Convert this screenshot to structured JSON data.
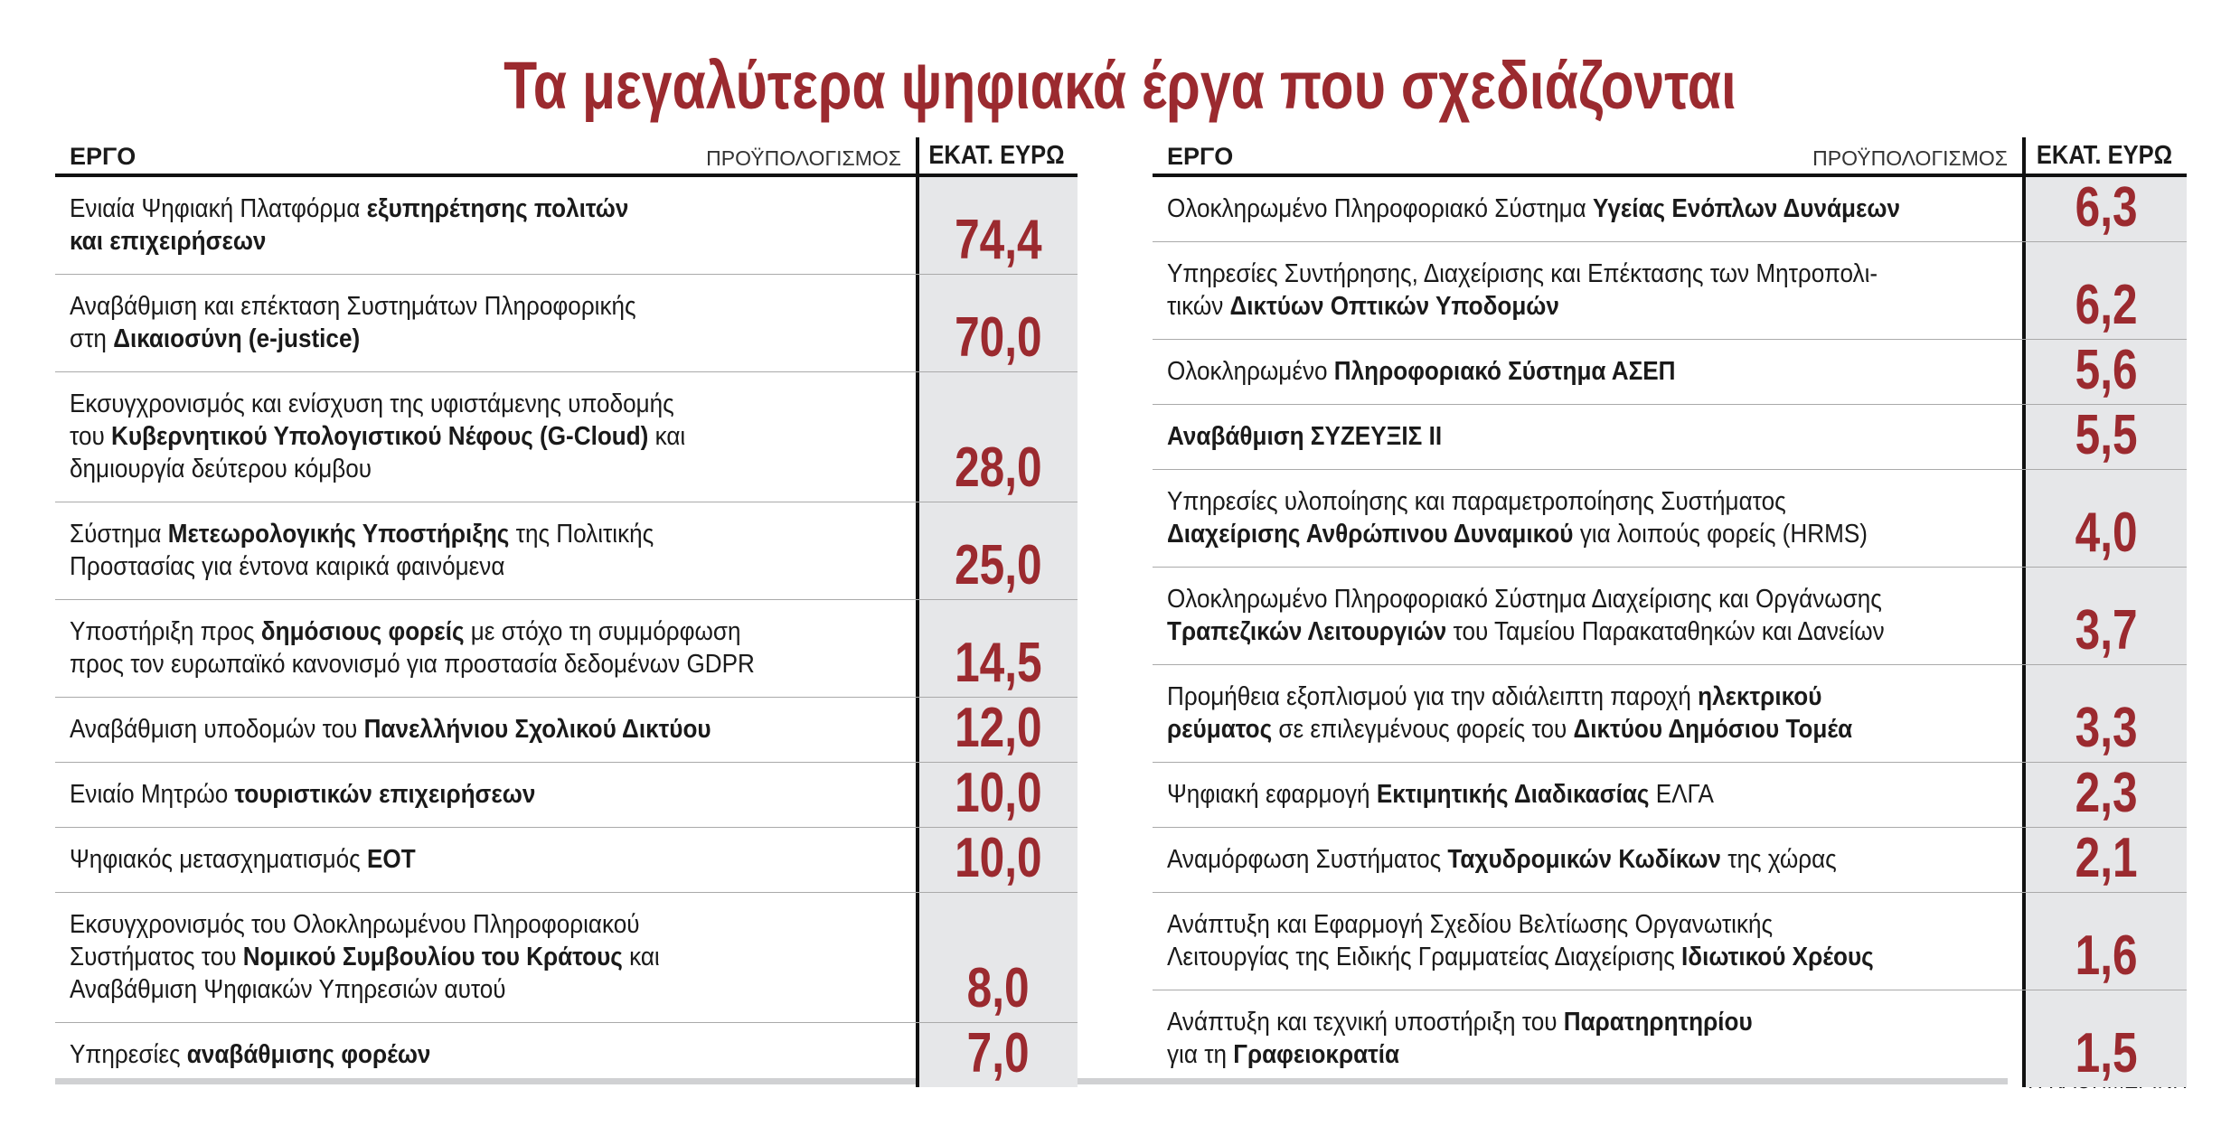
{
  "title": "Τα μεγαλύτερα ψηφιακά έργα που σχεδιάζονται",
  "tables": [
    {
      "header": {
        "project": "ΕΡΓΟ",
        "budget": "ΠΡΟΫΠΟΛΟΓΙΣΜΟΣ",
        "unit": "ΕΚΑΤ. ΕΥΡΩ"
      },
      "rows": [
        {
          "lines": [
            [
              {
                "t": "Ενιαία Ψηφιακή Πλατφόρμα "
              },
              {
                "t": "εξυπηρέτησης πολιτών",
                "b": true
              }
            ],
            [
              {
                "t": "και επιχειρήσεων",
                "b": true
              }
            ]
          ],
          "value": "74,4"
        },
        {
          "lines": [
            [
              {
                "t": "Αναβάθμιση και επέκταση Συστημάτων Πληροφορικής"
              }
            ],
            [
              {
                "t": "στη "
              },
              {
                "t": "Δικαιοσύνη (e-justice)",
                "b": true
              }
            ]
          ],
          "value": "70,0"
        },
        {
          "lines": [
            [
              {
                "t": "Εκσυγχρονισμός και ενίσχυση της υφιστάμενης υποδομής"
              }
            ],
            [
              {
                "t": "του "
              },
              {
                "t": "Κυβερνητικού Υπολογιστικού Νέφους (G-Cloud)",
                "b": true
              },
              {
                "t": " και"
              }
            ],
            [
              {
                "t": "δημιουργία δεύτερου κόμβου"
              }
            ]
          ],
          "value": "28,0"
        },
        {
          "lines": [
            [
              {
                "t": "Σύστημα "
              },
              {
                "t": "Μετεωρολογικής Υποστήριξης",
                "b": true
              },
              {
                "t": " της Πολιτικής"
              }
            ],
            [
              {
                "t": "Προστασίας για έντονα καιρικά φαινόμενα"
              }
            ]
          ],
          "value": "25,0"
        },
        {
          "lines": [
            [
              {
                "t": "Υποστήριξη προς "
              },
              {
                "t": "δημόσιους φορείς",
                "b": true
              },
              {
                "t": " με στόχο τη συμμόρφωση"
              }
            ],
            [
              {
                "t": "προς τον ευρωπαϊκό κανονισμό για προστασία δεδομένων GDPR"
              }
            ]
          ],
          "value": "14,5"
        },
        {
          "lines": [
            [
              {
                "t": "Αναβάθμιση υποδομών του "
              },
              {
                "t": "Πανελλήνιου Σχολικού Δικτύου",
                "b": true
              }
            ]
          ],
          "value": "12,0"
        },
        {
          "lines": [
            [
              {
                "t": "Ενιαίο Μητρώο "
              },
              {
                "t": "τουριστικών επιχειρήσεων",
                "b": true
              }
            ]
          ],
          "value": "10,0"
        },
        {
          "lines": [
            [
              {
                "t": "Ψηφιακός μετασχηματισμός "
              },
              {
                "t": "ΕΟΤ",
                "b": true
              }
            ]
          ],
          "value": "10,0"
        },
        {
          "lines": [
            [
              {
                "t": "Εκσυγχρονισμός του Ολοκληρωμένου Πληροφοριακού"
              }
            ],
            [
              {
                "t": "Συστήματος του "
              },
              {
                "t": "Νομικού Συμβουλίου του Κράτους",
                "b": true
              },
              {
                "t": " και"
              }
            ],
            [
              {
                "t": "Αναβάθμιση Ψηφιακών Υπηρεσιών αυτού"
              }
            ]
          ],
          "value": "8,0"
        },
        {
          "lines": [
            [
              {
                "t": "Υπηρεσίες "
              },
              {
                "t": "αναβάθμισης φορέων",
                "b": true
              }
            ]
          ],
          "value": "7,0"
        }
      ]
    },
    {
      "header": {
        "project": "ΕΡΓΟ",
        "budget": "ΠΡΟΫΠΟΛΟΓΙΣΜΟΣ",
        "unit": "ΕΚΑΤ. ΕΥΡΩ"
      },
      "rows": [
        {
          "lines": [
            [
              {
                "t": "Ολοκληρωμένο Πληροφοριακό Σύστημα "
              },
              {
                "t": "Υγείας Ενόπλων Δυνάμεων",
                "b": true
              }
            ]
          ],
          "value": "6,3"
        },
        {
          "lines": [
            [
              {
                "t": "Υπηρεσίες Συντήρησης, Διαχείρισης και Επέκτασης των Μητροπολι-"
              }
            ],
            [
              {
                "t": "τικών "
              },
              {
                "t": "Δικτύων Οπτικών Υποδομών",
                "b": true
              }
            ]
          ],
          "value": "6,2"
        },
        {
          "lines": [
            [
              {
                "t": "Ολοκληρωμένο "
              },
              {
                "t": "Πληροφοριακό Σύστημα ΑΣΕΠ",
                "b": true
              }
            ]
          ],
          "value": "5,6"
        },
        {
          "lines": [
            [
              {
                "t": "Αναβάθμιση ΣΥΖΕΥΞΙΣ ΙΙ",
                "b": true
              }
            ]
          ],
          "value": "5,5"
        },
        {
          "lines": [
            [
              {
                "t": "Υπηρεσίες υλοποίησης και παραμετροποίησης Συστήματος"
              }
            ],
            [
              {
                "t": "Διαχείρισης Ανθρώπινου Δυναμικού",
                "b": true
              },
              {
                "t": " για λοιπούς φορείς (HRMS)"
              }
            ]
          ],
          "value": "4,0"
        },
        {
          "lines": [
            [
              {
                "t": "Ολοκληρωμένο Πληροφοριακό Σύστημα Διαχείρισης και Οργάνωσης"
              }
            ],
            [
              {
                "t": "Τραπεζικών Λειτουργιών",
                "b": true
              },
              {
                "t": " του Ταμείου Παρακαταθηκών και Δανείων"
              }
            ]
          ],
          "value": "3,7"
        },
        {
          "lines": [
            [
              {
                "t": "Προμήθεια εξοπλισμού για την αδιάλειπτη παροχή "
              },
              {
                "t": "ηλεκτρικού",
                "b": true
              }
            ],
            [
              {
                "t": "ρεύματος",
                "b": true
              },
              {
                "t": " σε επιλεγμένους φορείς του "
              },
              {
                "t": "Δικτύου Δημόσιου Τομέα",
                "b": true
              }
            ]
          ],
          "value": "3,3"
        },
        {
          "lines": [
            [
              {
                "t": "Ψηφιακή εφαρμογή "
              },
              {
                "t": "Εκτιμητικής Διαδικασίας",
                "b": true
              },
              {
                "t": " ΕΛΓΑ"
              }
            ]
          ],
          "value": "2,3"
        },
        {
          "lines": [
            [
              {
                "t": "Αναμόρφωση Συστήματος "
              },
              {
                "t": "Ταχυδρομικών Κωδίκων",
                "b": true
              },
              {
                "t": " της χώρας"
              }
            ]
          ],
          "value": "2,1"
        },
        {
          "lines": [
            [
              {
                "t": "Ανάπτυξη και Εφαρμογή Σχεδίου Βελτίωσης Οργανωτικής"
              }
            ],
            [
              {
                "t": "Λειτουργίας της Ειδικής Γραμματείας Διαχείρισης "
              },
              {
                "t": "Ιδιωτικού Χρέους",
                "b": true
              }
            ]
          ],
          "value": "1,6"
        },
        {
          "lines": [
            [
              {
                "t": "Ανάπτυξη και τεχνική υποστήριξη του "
              },
              {
                "t": "Παρατηρητηρίου",
                "b": true
              }
            ],
            [
              {
                "t": "για τη "
              },
              {
                "t": "Γραφειοκρατία",
                "b": true
              }
            ]
          ],
          "value": "1,5"
        }
      ]
    }
  ],
  "footer": "Η ΚΑΘΗΜΕΡΙΝΗ"
}
